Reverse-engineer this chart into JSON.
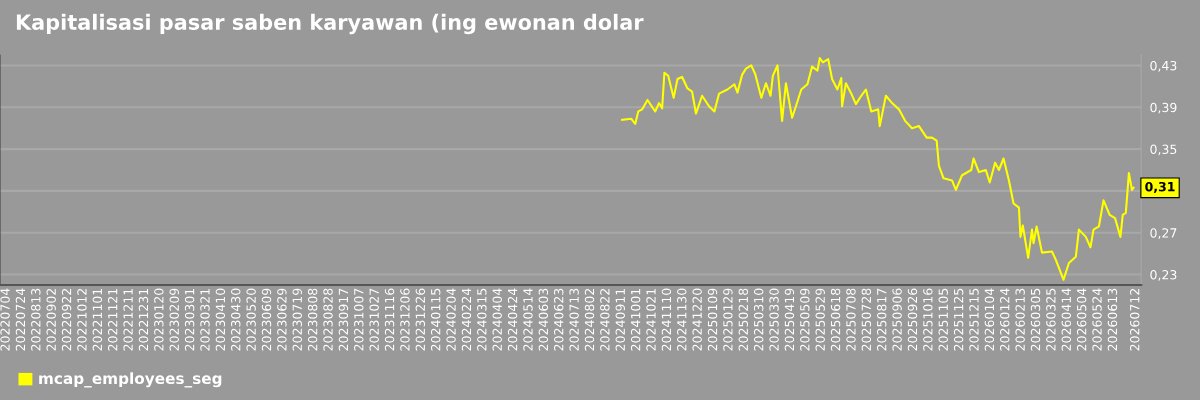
{
  "chart_data": {
    "type": "line",
    "title": "Kapitalisasi pasar saben karyawan (ing ewonan dolar",
    "series": [
      {
        "name": "mcap_employees_seg",
        "color": "#ffff00",
        "x": [
          "2024-09-12",
          "2024-09-24",
          "2024-09-29",
          "2024-10-03",
          "2024-10-08",
          "2024-10-15",
          "2024-10-25",
          "2024-10-30",
          "2024-11-03",
          "2024-11-06",
          "2024-11-11",
          "2024-11-18",
          "2024-11-23",
          "2024-11-29",
          "2024-12-06",
          "2024-12-12",
          "2024-12-17",
          "2024-12-25",
          "2025-01-03",
          "2025-01-10",
          "2025-01-16",
          "2025-01-27",
          "2025-02-05",
          "2025-02-09",
          "2025-02-15",
          "2025-02-20",
          "2025-02-27",
          "2025-03-04",
          "2025-03-12",
          "2025-03-18",
          "2025-03-24",
          "2025-03-27",
          "2025-04-02",
          "2025-04-08",
          "2025-04-13",
          "2025-04-21",
          "2025-04-26",
          "2025-05-03",
          "2025-05-11",
          "2025-05-17",
          "2025-05-24",
          "2025-05-27",
          "2025-05-31",
          "2025-06-07",
          "2025-06-12",
          "2025-06-19",
          "2025-06-24",
          "2025-06-25",
          "2025-06-30",
          "2025-07-07",
          "2025-07-13",
          "2025-07-20",
          "2025-07-26",
          "2025-08-02",
          "2025-08-11",
          "2025-08-13",
          "2025-08-21",
          "2025-08-29",
          "2025-09-07",
          "2025-09-15",
          "2025-09-24",
          "2025-10-03",
          "2025-10-13",
          "2025-10-20",
          "2025-10-26",
          "2025-10-29",
          "2025-11-04",
          "2025-11-15",
          "2025-11-20",
          "2025-11-28",
          "2025-12-10",
          "2025-12-13",
          "2025-12-20",
          "2025-12-29",
          "2026-01-03",
          "2026-01-10",
          "2026-01-15",
          "2026-01-21",
          "2026-01-28",
          "2026-02-03",
          "2026-02-10",
          "2026-02-12",
          "2026-02-15",
          "2026-02-22",
          "2026-02-27",
          "2026-03-01",
          "2026-03-05",
          "2026-03-12",
          "2026-03-25",
          "2026-03-30",
          "2026-04-09",
          "2026-04-16",
          "2026-04-25",
          "2026-04-29",
          "2026-05-08",
          "2026-05-14",
          "2026-05-18",
          "2026-05-25",
          "2026-05-31",
          "2026-06-08",
          "2026-06-15",
          "2026-06-22",
          "2026-06-25",
          "2026-06-29",
          "2026-07-03",
          "2026-07-07",
          "2026-07-09"
        ],
        "values": [
          0.378,
          0.379,
          0.374,
          0.386,
          0.388,
          0.397,
          0.386,
          0.394,
          0.389,
          0.423,
          0.42,
          0.399,
          0.417,
          0.419,
          0.408,
          0.405,
          0.384,
          0.401,
          0.391,
          0.386,
          0.403,
          0.407,
          0.412,
          0.404,
          0.421,
          0.427,
          0.43,
          0.422,
          0.399,
          0.413,
          0.401,
          0.42,
          0.43,
          0.377,
          0.413,
          0.38,
          0.391,
          0.407,
          0.412,
          0.429,
          0.425,
          0.437,
          0.433,
          0.436,
          0.417,
          0.407,
          0.418,
          0.391,
          0.413,
          0.403,
          0.393,
          0.401,
          0.407,
          0.386,
          0.388,
          0.372,
          0.401,
          0.394,
          0.388,
          0.377,
          0.37,
          0.372,
          0.361,
          0.361,
          0.358,
          0.334,
          0.322,
          0.32,
          0.311,
          0.325,
          0.33,
          0.341,
          0.328,
          0.33,
          0.318,
          0.337,
          0.33,
          0.341,
          0.32,
          0.298,
          0.294,
          0.266,
          0.277,
          0.246,
          0.273,
          0.26,
          0.276,
          0.251,
          0.252,
          0.244,
          0.225,
          0.241,
          0.247,
          0.273,
          0.266,
          0.256,
          0.273,
          0.276,
          0.301,
          0.287,
          0.284,
          0.266,
          0.287,
          0.289,
          0.327,
          0.311,
          0.313
        ],
        "value_labels": [
          null,
          null,
          null,
          null,
          null,
          null,
          null,
          null,
          null,
          null,
          null,
          null,
          null,
          null,
          null,
          null,
          null,
          null,
          null,
          null,
          null,
          null,
          null,
          null,
          null,
          null,
          null,
          null,
          null,
          null,
          null,
          null,
          null,
          null,
          null,
          null,
          null,
          null,
          null,
          null,
          null,
          null,
          null,
          null,
          null,
          null,
          null,
          null,
          null,
          null,
          null,
          null,
          null,
          null,
          null,
          null,
          null,
          null,
          null,
          null,
          null,
          null,
          null,
          null,
          null,
          null,
          null,
          null,
          null,
          null,
          null,
          null,
          null,
          null,
          null,
          null,
          null,
          null,
          null,
          null,
          null,
          null,
          null,
          null,
          null,
          null,
          null,
          null,
          null,
          null,
          null,
          null,
          null,
          null,
          null,
          null,
          null,
          null,
          null,
          null,
          null,
          null,
          null,
          null,
          null,
          null,
          "0,31"
        ]
      }
    ],
    "xlim": [
      "2022-06-26",
      "2026-07-19"
    ],
    "xticks": [
      {
        "value": "2022-07-04",
        "label": "20220704"
      },
      {
        "value": "2022-07-24",
        "label": "20220724"
      },
      {
        "value": "2022-08-13",
        "label": "20220813"
      },
      {
        "value": "2022-09-02",
        "label": "20220902"
      },
      {
        "value": "2022-09-22",
        "label": "20220922"
      },
      {
        "value": "2022-10-12",
        "label": "20221012"
      },
      {
        "value": "2022-11-01",
        "label": "20221101"
      },
      {
        "value": "2022-11-21",
        "label": "20221121"
      },
      {
        "value": "2022-12-11",
        "label": "20221211"
      },
      {
        "value": "2022-12-31",
        "label": "20221231"
      },
      {
        "value": "2023-01-20",
        "label": "20230120"
      },
      {
        "value": "2023-02-09",
        "label": "20230209"
      },
      {
        "value": "2023-03-01",
        "label": "20230301"
      },
      {
        "value": "2023-03-21",
        "label": "20230321"
      },
      {
        "value": "2023-04-10",
        "label": "20230410"
      },
      {
        "value": "2023-04-30",
        "label": "20230430"
      },
      {
        "value": "2023-05-20",
        "label": "20230520"
      },
      {
        "value": "2023-06-09",
        "label": "20230609"
      },
      {
        "value": "2023-06-29",
        "label": "20230629"
      },
      {
        "value": "2023-07-19",
        "label": "20230719"
      },
      {
        "value": "2023-08-08",
        "label": "20230808"
      },
      {
        "value": "2023-08-28",
        "label": "20230828"
      },
      {
        "value": "2023-09-17",
        "label": "20230917"
      },
      {
        "value": "2023-10-07",
        "label": "20231007"
      },
      {
        "value": "2023-10-27",
        "label": "20231027"
      },
      {
        "value": "2023-11-16",
        "label": "20231116"
      },
      {
        "value": "2023-12-06",
        "label": "20231206"
      },
      {
        "value": "2023-12-26",
        "label": "20231226"
      },
      {
        "value": "2024-01-15",
        "label": "20240115"
      },
      {
        "value": "2024-02-04",
        "label": "20240204"
      },
      {
        "value": "2024-02-24",
        "label": "20240224"
      },
      {
        "value": "2024-03-15",
        "label": "20240315"
      },
      {
        "value": "2024-04-04",
        "label": "20240404"
      },
      {
        "value": "2024-04-24",
        "label": "20240424"
      },
      {
        "value": "2024-05-14",
        "label": "20240514"
      },
      {
        "value": "2024-06-03",
        "label": "20240603"
      },
      {
        "value": "2024-06-23",
        "label": "20240623"
      },
      {
        "value": "2024-07-13",
        "label": "20240713"
      },
      {
        "value": "2024-08-02",
        "label": "20240802"
      },
      {
        "value": "2024-08-22",
        "label": "20240822"
      },
      {
        "value": "2024-09-11",
        "label": "20240911"
      },
      {
        "value": "2024-10-01",
        "label": "20241001"
      },
      {
        "value": "2024-10-21",
        "label": "20241021"
      },
      {
        "value": "2024-11-10",
        "label": "20241110"
      },
      {
        "value": "2024-11-30",
        "label": "20241130"
      },
      {
        "value": "2024-12-20",
        "label": "20241220"
      },
      {
        "value": "2025-01-09",
        "label": "20250109"
      },
      {
        "value": "2025-01-29",
        "label": "20250129"
      },
      {
        "value": "2025-02-18",
        "label": "20250218"
      },
      {
        "value": "2025-03-10",
        "label": "20250310"
      },
      {
        "value": "2025-03-30",
        "label": "20250330"
      },
      {
        "value": "2025-04-19",
        "label": "20250419"
      },
      {
        "value": "2025-05-09",
        "label": "20250509"
      },
      {
        "value": "2025-05-29",
        "label": "20250529"
      },
      {
        "value": "2025-06-18",
        "label": "20250618"
      },
      {
        "value": "2025-07-08",
        "label": "20250708"
      },
      {
        "value": "2025-07-28",
        "label": "20250728"
      },
      {
        "value": "2025-08-17",
        "label": "20250817"
      },
      {
        "value": "2025-09-06",
        "label": "20250906"
      },
      {
        "value": "2025-09-26",
        "label": "20250926"
      },
      {
        "value": "2025-10-16",
        "label": "20251016"
      },
      {
        "value": "2025-11-05",
        "label": "20251105"
      },
      {
        "value": "2025-11-25",
        "label": "20251125"
      },
      {
        "value": "2025-12-15",
        "label": "20251215"
      },
      {
        "value": "2026-01-04",
        "label": "20260104"
      },
      {
        "value": "2026-01-24",
        "label": "20260124"
      },
      {
        "value": "2026-02-13",
        "label": "20260213"
      },
      {
        "value": "2026-03-05",
        "label": "20260305"
      },
      {
        "value": "2026-03-25",
        "label": "20260325"
      },
      {
        "value": "2026-04-14",
        "label": "20260414"
      },
      {
        "value": "2026-05-04",
        "label": "20260504"
      },
      {
        "value": "2026-05-24",
        "label": "20260524"
      },
      {
        "value": "2026-06-13",
        "label": "20260613"
      },
      {
        "value": "2026-07-12",
        "label": "20260712"
      }
    ],
    "ylim": [
      0.22,
      0.44
    ],
    "yticks": [
      {
        "value": 0.23,
        "label": "0,23"
      },
      {
        "value": 0.27,
        "label": "0,27"
      },
      {
        "value": 0.31,
        "label": null
      },
      {
        "value": 0.35,
        "label": "0,35"
      },
      {
        "value": 0.39,
        "label": "0,39"
      },
      {
        "value": 0.43,
        "label": "0,43"
      }
    ],
    "grid": "y",
    "legend": "bottom left",
    "marker": "none",
    "line_style": "solid"
  }
}
